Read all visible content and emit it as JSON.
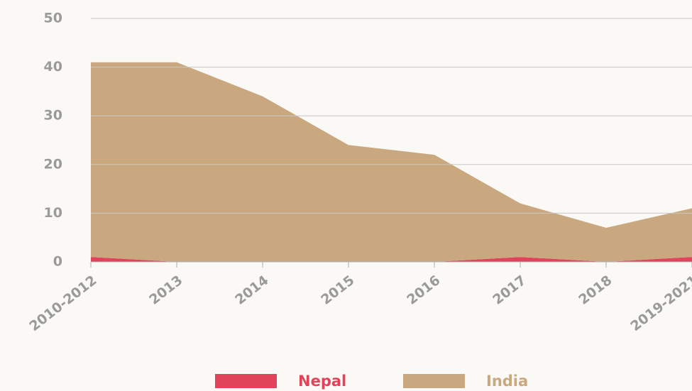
{
  "chart_data": {
    "type": "stacked-area",
    "categories": [
      "2010-2012",
      "2013",
      "2014",
      "2015",
      "2016",
      "2017",
      "2018",
      "2019-2021"
    ],
    "series": [
      {
        "name": "Nepal",
        "color": "#e0435a",
        "values": [
          1,
          0,
          0,
          0,
          0,
          1,
          0,
          1
        ]
      },
      {
        "name": "India",
        "color": "#c9a87f",
        "values": [
          40,
          41,
          34,
          24,
          22,
          11,
          7,
          10
        ]
      }
    ],
    "ylim": [
      0,
      50
    ],
    "yticks": [
      0,
      10,
      20,
      30,
      40,
      50
    ],
    "grid": true,
    "legend": "bottom"
  }
}
